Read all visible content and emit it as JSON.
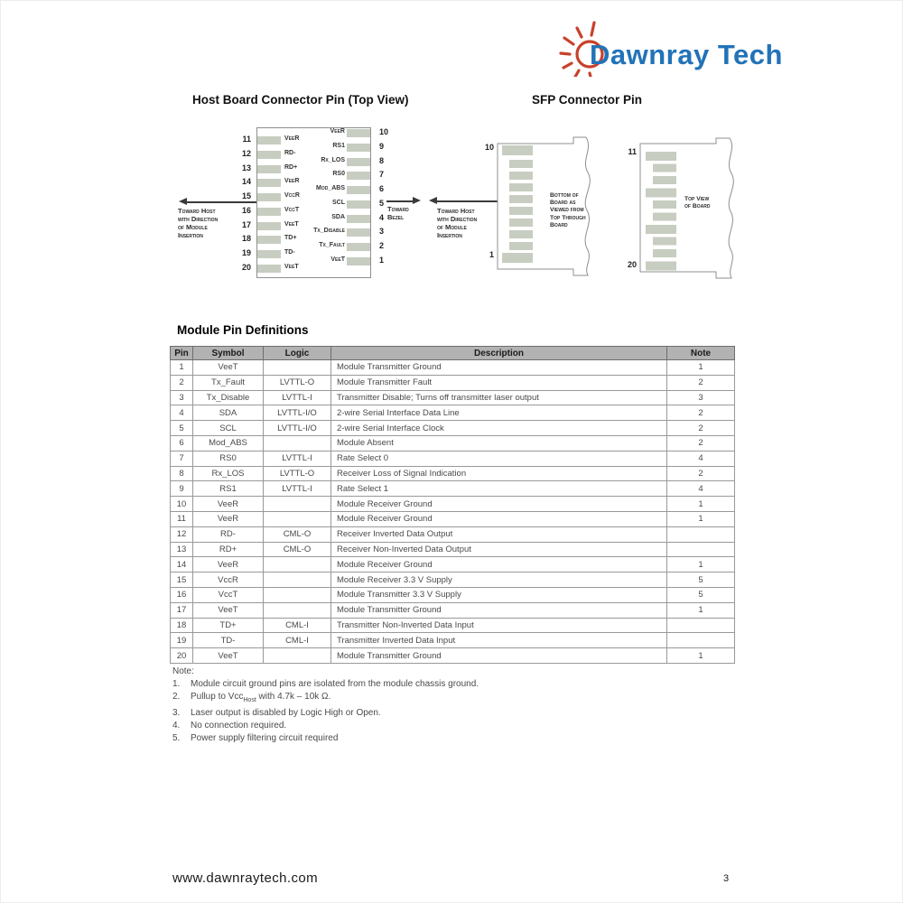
{
  "logo": {
    "text": "Dawnray Tech"
  },
  "colors": {
    "logo_blue": "#2273b8",
    "logo_red": "#c8402a",
    "pad": "#c7cdc0",
    "table_header_bg": "#b2b2b2"
  },
  "diagrams": {
    "host": {
      "title": "Host Board Connector Pin (Top View)",
      "left_pins": [
        {
          "num": "11",
          "label": "VeeR"
        },
        {
          "num": "12",
          "label": "RD-"
        },
        {
          "num": "13",
          "label": "RD+"
        },
        {
          "num": "14",
          "label": "VeeR"
        },
        {
          "num": "15",
          "label": "VccR"
        },
        {
          "num": "16",
          "label": "VccT"
        },
        {
          "num": "17",
          "label": "VeeT"
        },
        {
          "num": "18",
          "label": "TD+"
        },
        {
          "num": "19",
          "label": "TD-"
        },
        {
          "num": "20",
          "label": "VeeT"
        }
      ],
      "right_pins": [
        {
          "num": "10",
          "label": "VeeR"
        },
        {
          "num": "9",
          "label": "RS1"
        },
        {
          "num": "8",
          "label": "Rx_LOS"
        },
        {
          "num": "7",
          "label": "RS0"
        },
        {
          "num": "6",
          "label": "Mod_ABS"
        },
        {
          "num": "5",
          "label": "SCL"
        },
        {
          "num": "4",
          "label": "SDA"
        },
        {
          "num": "3",
          "label": "Tx_Disable"
        },
        {
          "num": "2",
          "label": "Tx_Fault"
        },
        {
          "num": "1",
          "label": "VeeT"
        }
      ],
      "toward_host_lines": [
        "Toward Host",
        "with Direction",
        "of Module",
        "Insertion"
      ],
      "toward_bezel_lines": [
        "Toward",
        "Bezel"
      ]
    },
    "sfp": {
      "title": "SFP Connector Pin",
      "toward_host_lines": [
        "Toward Host",
        "with Direction",
        "of Module",
        "Insertion"
      ],
      "left_board": {
        "top_pin": "10",
        "bottom_pin": "1",
        "caption_lines": [
          "Bottom of",
          "Board as",
          "Viewed from",
          "Top Through",
          "Board"
        ]
      },
      "right_board": {
        "top_pin": "11",
        "bottom_pin": "20",
        "caption_lines": [
          "Top View",
          "of Board"
        ]
      }
    }
  },
  "pin_table": {
    "title": "Module Pin Definitions",
    "headers": [
      "Pin",
      "Symbol",
      "Logic",
      "Description",
      "Note"
    ],
    "rows": [
      [
        "1",
        "VeeT",
        "",
        "Module Transmitter Ground",
        "1"
      ],
      [
        "2",
        "Tx_Fault",
        "LVTTL-O",
        "Module Transmitter Fault",
        "2"
      ],
      [
        "3",
        "Tx_Disable",
        "LVTTL-I",
        "Transmitter Disable; Turns off transmitter laser output",
        "3"
      ],
      [
        "4",
        "SDA",
        "LVTTL-I/O",
        "2-wire Serial Interface Data Line",
        "2"
      ],
      [
        "5",
        "SCL",
        "LVTTL-I/O",
        "2-wire Serial Interface Clock",
        "2"
      ],
      [
        "6",
        "Mod_ABS",
        "",
        "Module Absent",
        "2"
      ],
      [
        "7",
        "RS0",
        "LVTTL-I",
        "Rate Select 0",
        "4"
      ],
      [
        "8",
        "Rx_LOS",
        "LVTTL-O",
        "Receiver Loss of Signal Indication",
        "2"
      ],
      [
        "9",
        "RS1",
        "LVTTL-I",
        "Rate Select 1",
        "4"
      ],
      [
        "10",
        "VeeR",
        "",
        "Module Receiver Ground",
        "1"
      ],
      [
        "11",
        "VeeR",
        "",
        "Module Receiver Ground",
        "1"
      ],
      [
        "12",
        "RD-",
        "CML-O",
        "Receiver Inverted Data Output",
        ""
      ],
      [
        "13",
        "RD+",
        "CML-O",
        "Receiver Non-Inverted Data Output",
        ""
      ],
      [
        "14",
        "VeeR",
        "",
        "Module Receiver Ground",
        "1"
      ],
      [
        "15",
        "VccR",
        "",
        "Module Receiver 3.3 V Supply",
        "5"
      ],
      [
        "16",
        "VccT",
        "",
        "Module Transmitter 3.3 V Supply",
        "5"
      ],
      [
        "17",
        "VeeT",
        "",
        "Module Transmitter Ground",
        "1"
      ],
      [
        "18",
        "TD+",
        "CML-I",
        "Transmitter Non-Inverted Data Input",
        ""
      ],
      [
        "19",
        "TD-",
        "CML-I",
        "Transmitter Inverted Data Input",
        ""
      ],
      [
        "20",
        "VeeT",
        "",
        "Module Transmitter Ground",
        "1"
      ]
    ]
  },
  "notes": {
    "label": "Note:",
    "items": [
      {
        "num": "1.",
        "text": "Module circuit ground pins are isolated from the module chassis ground."
      },
      {
        "num": "2.",
        "pre": "Pullup to Vcc",
        "sub": "Host",
        "post": " with 4.7k – 10k Ω."
      },
      {
        "num": "3.",
        "text": "Laser output is disabled by Logic High or Open."
      },
      {
        "num": "4.",
        "text": "No connection required."
      },
      {
        "num": "5.",
        "text": "Power supply filtering circuit required"
      }
    ]
  },
  "footer": {
    "url": "www.dawnraytech.com",
    "page": "3"
  }
}
